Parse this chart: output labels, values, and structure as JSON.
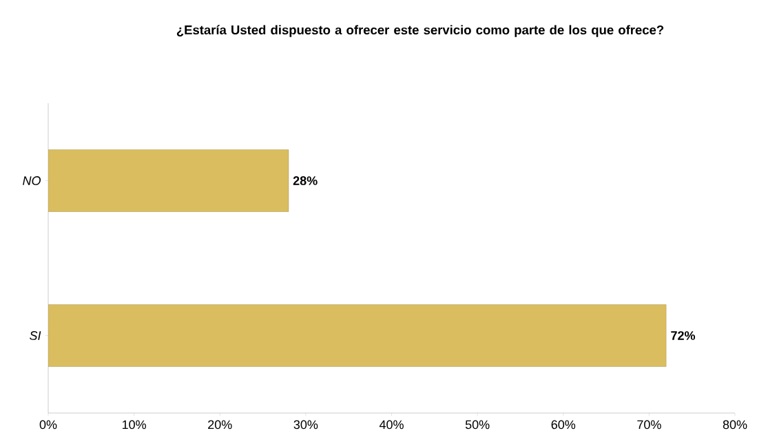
{
  "chart_data": {
    "type": "bar",
    "orientation": "horizontal",
    "title": "¿Estaría Usted dispuesto a ofrecer este servicio como parte de los que ofrece?",
    "categories": [
      "NO",
      "SI"
    ],
    "values": [
      28,
      72
    ],
    "value_labels": [
      "28%",
      "72%"
    ],
    "color": "#d9bd5e",
    "xlim": [
      0,
      80
    ],
    "xticks": [
      {
        "value": 0,
        "label": "0%"
      },
      {
        "value": 10,
        "label": "10%"
      },
      {
        "value": 20,
        "label": "20%"
      },
      {
        "value": 30,
        "label": "30%"
      },
      {
        "value": 40,
        "label": "40%"
      },
      {
        "value": 50,
        "label": "50%"
      },
      {
        "value": 60,
        "label": "60%"
      },
      {
        "value": 70,
        "label": "70%"
      },
      {
        "value": 80,
        "label": "80%"
      }
    ],
    "grid": false
  }
}
